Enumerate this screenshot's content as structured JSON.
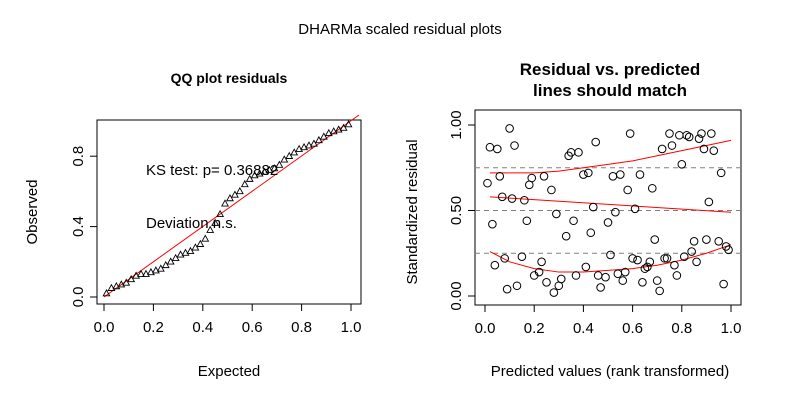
{
  "figure_title": "DHARMa scaled residual plots",
  "colors": {
    "fit_line": "#ff0000",
    "quantile_ref": "#808080",
    "points": "#000000"
  },
  "chart_data": [
    {
      "type": "scatter",
      "marker": "triangle",
      "title": "QQ plot residuals",
      "xlabel": "Expected",
      "ylabel": "Observed",
      "xlim": [
        0,
        1
      ],
      "ylim": [
        0,
        1
      ],
      "xticks": [
        "0.0",
        "0.2",
        "0.4",
        "0.6",
        "0.8",
        "1.0"
      ],
      "yticks": [
        "0.0",
        "0.4",
        "0.8"
      ],
      "ytick_values": [
        0,
        0.4,
        0.8
      ],
      "grid": false,
      "reference_line": {
        "x": [
          0,
          1
        ],
        "y": [
          0,
          1
        ]
      },
      "annotations": [
        "KS test: p= 0.36882",
        "Deviation n.s."
      ],
      "x": [
        0.01,
        0.03,
        0.05,
        0.07,
        0.09,
        0.11,
        0.13,
        0.15,
        0.17,
        0.19,
        0.21,
        0.23,
        0.25,
        0.27,
        0.29,
        0.31,
        0.33,
        0.35,
        0.37,
        0.39,
        0.41,
        0.43,
        0.45,
        0.47,
        0.49,
        0.51,
        0.53,
        0.55,
        0.57,
        0.59,
        0.61,
        0.63,
        0.65,
        0.67,
        0.69,
        0.71,
        0.73,
        0.75,
        0.77,
        0.79,
        0.81,
        0.83,
        0.85,
        0.87,
        0.89,
        0.91,
        0.93,
        0.95,
        0.97,
        0.99
      ],
      "y": [
        0.02,
        0.05,
        0.06,
        0.07,
        0.08,
        0.1,
        0.12,
        0.13,
        0.13,
        0.14,
        0.15,
        0.16,
        0.18,
        0.2,
        0.22,
        0.24,
        0.25,
        0.26,
        0.28,
        0.3,
        0.33,
        0.38,
        0.42,
        0.47,
        0.53,
        0.56,
        0.58,
        0.6,
        0.64,
        0.67,
        0.69,
        0.7,
        0.71,
        0.72,
        0.73,
        0.75,
        0.78,
        0.8,
        0.82,
        0.84,
        0.85,
        0.86,
        0.87,
        0.89,
        0.91,
        0.93,
        0.94,
        0.95,
        0.96,
        0.98
      ]
    },
    {
      "type": "scatter",
      "marker": "circle",
      "title": "Residual vs. predicted",
      "subtitle": "lines should match",
      "xlabel": "Predicted values (rank transformed)",
      "ylabel": "Standardized residual",
      "xlim": [
        0,
        1
      ],
      "ylim": [
        0,
        1
      ],
      "xticks": [
        "0.0",
        "0.2",
        "0.4",
        "0.6",
        "0.8",
        "1.0"
      ],
      "yticks": [
        "0.00",
        "0.50",
        "1.00"
      ],
      "ytick_values": [
        0,
        0.5,
        1
      ],
      "grid": false,
      "reference_lines_y": [
        0.25,
        0.5,
        0.75
      ],
      "quantile_curves": [
        {
          "quantile": 0.25,
          "x": [
            0.02,
            0.1,
            0.2,
            0.3,
            0.4,
            0.5,
            0.6,
            0.7,
            0.8,
            0.9,
            1.0
          ],
          "y": [
            0.26,
            0.2,
            0.16,
            0.14,
            0.14,
            0.15,
            0.16,
            0.18,
            0.21,
            0.25,
            0.3
          ]
        },
        {
          "quantile": 0.5,
          "x": [
            0.02,
            1.0
          ],
          "y": [
            0.58,
            0.49
          ]
        },
        {
          "quantile": 0.75,
          "x": [
            0.02,
            0.1,
            0.2,
            0.3,
            0.4,
            0.5,
            0.6,
            0.7,
            0.8,
            0.9,
            1.0
          ],
          "y": [
            0.72,
            0.72,
            0.72,
            0.73,
            0.75,
            0.77,
            0.79,
            0.82,
            0.85,
            0.88,
            0.91
          ]
        }
      ],
      "x": [
        0.01,
        0.02,
        0.03,
        0.04,
        0.05,
        0.06,
        0.07,
        0.08,
        0.09,
        0.1,
        0.11,
        0.12,
        0.13,
        0.15,
        0.16,
        0.17,
        0.18,
        0.19,
        0.2,
        0.22,
        0.23,
        0.24,
        0.25,
        0.27,
        0.28,
        0.29,
        0.3,
        0.31,
        0.33,
        0.34,
        0.35,
        0.36,
        0.37,
        0.38,
        0.4,
        0.41,
        0.42,
        0.43,
        0.44,
        0.45,
        0.46,
        0.47,
        0.49,
        0.5,
        0.51,
        0.52,
        0.53,
        0.54,
        0.55,
        0.56,
        0.57,
        0.58,
        0.59,
        0.6,
        0.61,
        0.62,
        0.63,
        0.64,
        0.65,
        0.66,
        0.67,
        0.68,
        0.69,
        0.7,
        0.71,
        0.72,
        0.73,
        0.74,
        0.75,
        0.76,
        0.77,
        0.78,
        0.79,
        0.8,
        0.81,
        0.82,
        0.83,
        0.84,
        0.85,
        0.86,
        0.87,
        0.88,
        0.89,
        0.9,
        0.91,
        0.92,
        0.93,
        0.95,
        0.96,
        0.97,
        0.98,
        0.99
      ],
      "y": [
        0.66,
        0.87,
        0.42,
        0.18,
        0.86,
        0.7,
        0.58,
        0.22,
        0.04,
        0.98,
        0.57,
        0.88,
        0.06,
        0.23,
        0.56,
        0.44,
        0.65,
        0.69,
        0.12,
        0.14,
        0.2,
        0.7,
        0.08,
        0.62,
        0.02,
        0.48,
        0.06,
        0.1,
        0.35,
        0.82,
        0.84,
        0.44,
        0.12,
        0.84,
        0.71,
        0.17,
        0.72,
        0.37,
        0.52,
        0.9,
        0.12,
        0.05,
        0.11,
        0.43,
        0.24,
        0.7,
        0.49,
        0.13,
        0.71,
        0.09,
        0.14,
        0.62,
        0.95,
        0.22,
        0.51,
        0.21,
        0.71,
        0.08,
        0.16,
        0.17,
        0.2,
        0.63,
        0.33,
        0.09,
        0.03,
        0.86,
        0.22,
        0.22,
        0.95,
        0.88,
        0.18,
        0.12,
        0.94,
        0.77,
        0.23,
        0.94,
        0.93,
        0.26,
        0.32,
        0.2,
        0.92,
        0.95,
        0.86,
        0.33,
        0.55,
        0.95,
        0.85,
        0.32,
        0.72,
        0.07,
        0.29,
        0.27
      ]
    }
  ]
}
